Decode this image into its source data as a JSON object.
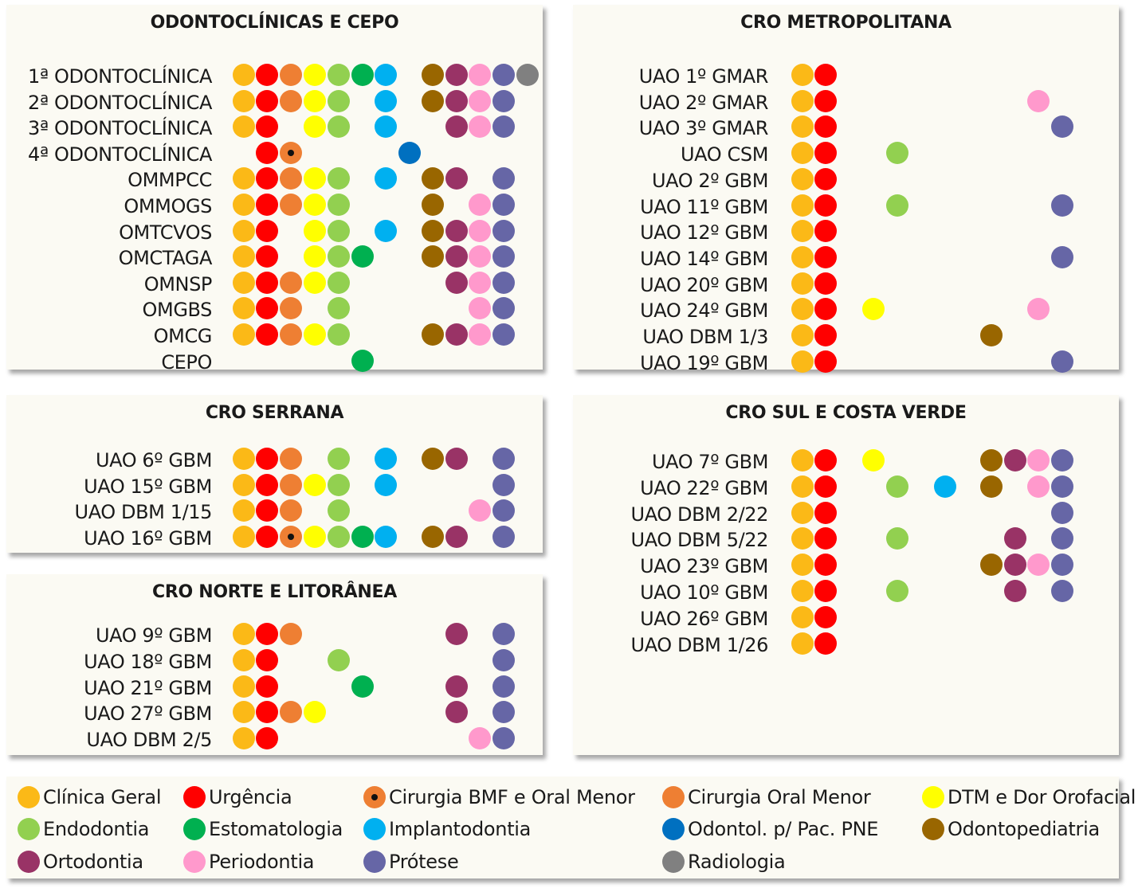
{
  "categories": [
    {
      "id": "CG",
      "label": "Clínica Geral",
      "color": "#FBB917",
      "icon": "orange-circle-icon"
    },
    {
      "id": "URG",
      "label": "Urgência",
      "color": "#FF0000",
      "icon": "red-circle-icon"
    },
    {
      "id": "BMF",
      "label": "Cirurgia BMF e Oral Menor",
      "color": "#EE7F33",
      "icon": "orange-circle-with-dot-icon",
      "dotted": true
    },
    {
      "id": "COM",
      "label": "Cirurgia Oral Menor",
      "color": "#EE7F33",
      "icon": "dark-orange-circle-icon"
    },
    {
      "id": "DTM",
      "label": "DTM e Dor Orofacial",
      "color": "#FFFF00",
      "icon": "yellow-circle-icon"
    },
    {
      "id": "END",
      "label": "Endodontia",
      "color": "#92D050",
      "icon": "light-green-circle-icon"
    },
    {
      "id": "EST",
      "label": "Estomatologia",
      "color": "#00B050",
      "icon": "green-circle-icon"
    },
    {
      "id": "IMP",
      "label": "Implantodontia",
      "color": "#00B0F0",
      "icon": "cyan-circle-icon"
    },
    {
      "id": "PNE",
      "label": "Odontol. p/ Pac. PNE",
      "color": "#0070C0",
      "icon": "blue-circle-icon"
    },
    {
      "id": "PED",
      "label": "Odontopediatria",
      "color": "#996600",
      "icon": "brown-circle-icon"
    },
    {
      "id": "ORT",
      "label": "Ortodontia",
      "color": "#993366",
      "icon": "purple-circle-icon"
    },
    {
      "id": "PER",
      "label": "Periodontia",
      "color": "#FF99CC",
      "icon": "pink-circle-icon"
    },
    {
      "id": "PRO",
      "label": "Prótese",
      "color": "#6666A6",
      "icon": "slate-circle-icon"
    },
    {
      "id": "RAD",
      "label": "Radiologia",
      "color": "#808080",
      "icon": "gray-circle-icon"
    }
  ],
  "panels": [
    {
      "title": "ODONTOCLÍNICAS E CEPO",
      "rows": [
        {
          "label": "1ª ODONTOCLÍNICA",
          "services": [
            "CG",
            "URG",
            "COM",
            "DTM",
            "END",
            "EST",
            "IMP",
            "PED",
            "ORT",
            "PER",
            "PRO",
            "RAD"
          ]
        },
        {
          "label": "2ª ODONTOCLÍNICA",
          "services": [
            "CG",
            "URG",
            "COM",
            "DTM",
            "END",
            "IMP",
            "PED",
            "ORT",
            "PER",
            "PRO"
          ]
        },
        {
          "label": "3ª ODONTOCLÍNICA",
          "services": [
            "CG",
            "URG",
            "DTM",
            "END",
            "IMP",
            "ORT",
            "PER",
            "PRO"
          ]
        },
        {
          "label": "4ª ODONTOCLÍNICA",
          "services": [
            "URG",
            "BMF",
            "PNE"
          ]
        },
        {
          "label": "OMMPCC",
          "services": [
            "CG",
            "URG",
            "COM",
            "DTM",
            "END",
            "IMP",
            "PED",
            "ORT",
            "PRO"
          ]
        },
        {
          "label": "OMMOGS",
          "services": [
            "CG",
            "URG",
            "COM",
            "DTM",
            "END",
            "PED",
            "PER",
            "PRO"
          ]
        },
        {
          "label": "OMTCVOS",
          "services": [
            "CG",
            "URG",
            "DTM",
            "END",
            "IMP",
            "PED",
            "ORT",
            "PER",
            "PRO"
          ]
        },
        {
          "label": "OMCTAGA",
          "services": [
            "CG",
            "URG",
            "DTM",
            "END",
            "EST",
            "PED",
            "ORT",
            "PER",
            "PRO"
          ]
        },
        {
          "label": "OMNSP",
          "services": [
            "CG",
            "URG",
            "COM",
            "DTM",
            "END",
            "ORT",
            "PER",
            "PRO"
          ]
        },
        {
          "label": "OMGBS",
          "services": [
            "CG",
            "URG",
            "COM",
            "END",
            "PER",
            "PRO"
          ]
        },
        {
          "label": "OMCG",
          "services": [
            "CG",
            "URG",
            "COM",
            "DTM",
            "END",
            "PED",
            "ORT",
            "PER",
            "PRO"
          ]
        },
        {
          "label": "CEPO",
          "services": [
            "EST"
          ]
        }
      ]
    },
    {
      "title": "CRO METROPOLITANA",
      "rows": [
        {
          "label": "UAO 1º GMAR",
          "services": [
            "CG",
            "URG"
          ]
        },
        {
          "label": "UAO 2º GMAR",
          "services": [
            "CG",
            "URG",
            "PER"
          ]
        },
        {
          "label": "UAO 3º GMAR",
          "services": [
            "CG",
            "URG",
            "PRO"
          ]
        },
        {
          "label": "UAO CSM",
          "services": [
            "CG",
            "URG",
            "END"
          ]
        },
        {
          "label": "UAO 2º GBM",
          "services": [
            "CG",
            "URG"
          ]
        },
        {
          "label": "UAO 11º GBM",
          "services": [
            "CG",
            "URG",
            "END",
            "PRO"
          ]
        },
        {
          "label": "UAO 12º GBM",
          "services": [
            "CG",
            "URG"
          ]
        },
        {
          "label": "UAO 14º GBM",
          "services": [
            "CG",
            "URG",
            "PRO"
          ]
        },
        {
          "label": "UAO 20º GBM",
          "services": [
            "CG",
            "URG"
          ]
        },
        {
          "label": "UAO 24º GBM",
          "services": [
            "CG",
            "URG",
            "DTM",
            "PER"
          ]
        },
        {
          "label": "UAO DBM 1/3",
          "services": [
            "CG",
            "URG",
            "PED"
          ]
        },
        {
          "label": "UAO 19º GBM",
          "services": [
            "CG",
            "URG",
            "PRO"
          ]
        }
      ]
    },
    {
      "title": "CRO SERRANA",
      "rows": [
        {
          "label": "UAO 6º GBM",
          "services": [
            "CG",
            "URG",
            "COM",
            "END",
            "IMP",
            "PED",
            "ORT",
            "PRO"
          ]
        },
        {
          "label": "UAO 15º GBM",
          "services": [
            "CG",
            "URG",
            "COM",
            "DTM",
            "END",
            "IMP",
            "PRO"
          ]
        },
        {
          "label": "UAO DBM 1/15",
          "services": [
            "CG",
            "URG",
            "COM",
            "END",
            "PER",
            "PRO"
          ]
        },
        {
          "label": "UAO 16º GBM",
          "services": [
            "CG",
            "URG",
            "BMF",
            "DTM",
            "END",
            "EST",
            "IMP",
            "PED",
            "ORT",
            "PRO"
          ]
        }
      ]
    },
    {
      "title": "CRO NORTE E LITORÂNEA",
      "rows": [
        {
          "label": "UAO 9º GBM",
          "services": [
            "CG",
            "URG",
            "COM",
            "ORT",
            "PRO"
          ]
        },
        {
          "label": "UAO 18º GBM",
          "services": [
            "CG",
            "URG",
            "END",
            "PRO"
          ]
        },
        {
          "label": "UAO 21º GBM",
          "services": [
            "CG",
            "URG",
            "EST",
            "ORT",
            "PRO"
          ]
        },
        {
          "label": "UAO 27º GBM",
          "services": [
            "CG",
            "URG",
            "COM",
            "DTM",
            "ORT",
            "PRO"
          ]
        },
        {
          "label": "UAO DBM 2/5",
          "services": [
            "CG",
            "URG",
            "PER",
            "PRO"
          ]
        }
      ]
    },
    {
      "title": "CRO SUL E COSTA VERDE",
      "rows": [
        {
          "label": "UAO 7º GBM",
          "services": [
            "CG",
            "URG",
            "DTM",
            "PED",
            "ORT",
            "PER",
            "PRO"
          ]
        },
        {
          "label": "UAO 22º GBM",
          "services": [
            "CG",
            "URG",
            "END",
            "IMP",
            "PED",
            "PER",
            "PRO"
          ]
        },
        {
          "label": "UAO DBM 2/22",
          "services": [
            "CG",
            "URG",
            "PRO"
          ]
        },
        {
          "label": "UAO DBM 5/22",
          "services": [
            "CG",
            "URG",
            "END",
            "ORT",
            "PRO"
          ]
        },
        {
          "label": "UAO 23º GBM",
          "services": [
            "CG",
            "URG",
            "PED",
            "ORT",
            "PER",
            "PRO"
          ]
        },
        {
          "label": "UAO 10º GBM",
          "services": [
            "CG",
            "URG",
            "END",
            "ORT",
            "PRO"
          ]
        },
        {
          "label": "UAO 26º GBM",
          "services": [
            "CG",
            "URG"
          ]
        },
        {
          "label": "UAO DBM 1/26",
          "services": [
            "CG",
            "URG"
          ]
        }
      ]
    }
  ]
}
